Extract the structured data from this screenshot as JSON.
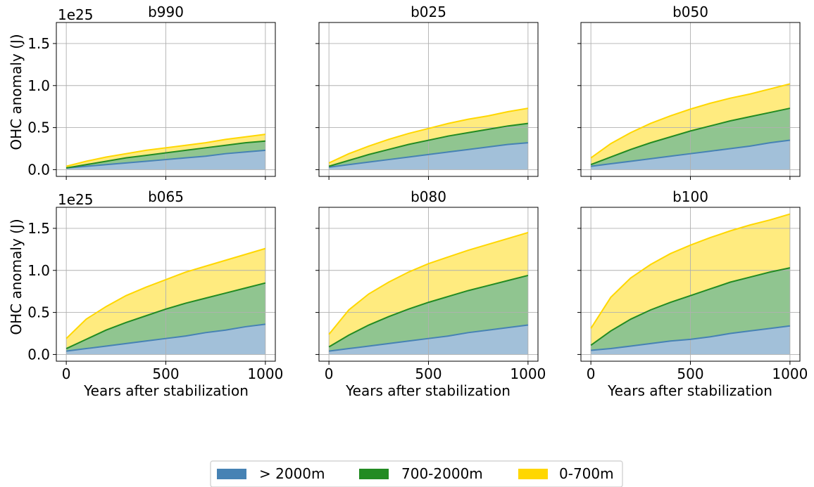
{
  "figure": {
    "ylabel": "OHC anomaly (J)",
    "xlabel": "Years after stabilization",
    "exponent_label": "1e25"
  },
  "legend": {
    "placement": "bottom-center",
    "items": [
      {
        "label": "> 2000m",
        "color": "#4682b4"
      },
      {
        "label": "700-2000m",
        "color": "#228b22"
      },
      {
        "label": "0-700m",
        "color": "#ffd700"
      }
    ]
  },
  "chart_data": [
    {
      "type": "area",
      "title": "b990",
      "x": [
        0,
        100,
        200,
        300,
        400,
        500,
        600,
        700,
        800,
        900,
        1000
      ],
      "series": [
        {
          "name": "> 2000m",
          "values": [
            0.02,
            0.04,
            0.06,
            0.08,
            0.1,
            0.12,
            0.14,
            0.16,
            0.19,
            0.21,
            0.23
          ]
        },
        {
          "name": "700-2000m",
          "values": [
            0.02,
            0.06,
            0.1,
            0.14,
            0.17,
            0.2,
            0.23,
            0.26,
            0.29,
            0.32,
            0.34
          ]
        },
        {
          "name": "0-700m",
          "values": [
            0.04,
            0.1,
            0.15,
            0.19,
            0.23,
            0.26,
            0.29,
            0.32,
            0.36,
            0.39,
            0.42
          ]
        }
      ],
      "xlim": [
        -50,
        1050
      ],
      "ylim": [
        -0.08,
        1.75
      ],
      "xticks": [
        0,
        500,
        1000
      ],
      "yticks": [
        0.0,
        0.5,
        1.0,
        1.5
      ],
      "grid": true
    },
    {
      "type": "area",
      "title": "b025",
      "x": [
        0,
        100,
        200,
        300,
        400,
        500,
        600,
        700,
        800,
        900,
        1000
      ],
      "series": [
        {
          "name": "> 2000m",
          "values": [
            0.03,
            0.06,
            0.09,
            0.12,
            0.15,
            0.18,
            0.21,
            0.24,
            0.27,
            0.3,
            0.32
          ]
        },
        {
          "name": "700-2000m",
          "values": [
            0.04,
            0.11,
            0.18,
            0.24,
            0.3,
            0.35,
            0.4,
            0.44,
            0.48,
            0.52,
            0.55
          ]
        },
        {
          "name": "0-700m",
          "values": [
            0.08,
            0.19,
            0.28,
            0.36,
            0.43,
            0.49,
            0.55,
            0.6,
            0.64,
            0.69,
            0.73
          ]
        }
      ],
      "xlim": [
        -50,
        1050
      ],
      "ylim": [
        -0.08,
        1.75
      ],
      "xticks": [
        0,
        500,
        1000
      ],
      "yticks": [
        0.0,
        0.5,
        1.0,
        1.5
      ],
      "grid": true
    },
    {
      "type": "area",
      "title": "b050",
      "x": [
        0,
        100,
        200,
        300,
        400,
        500,
        600,
        700,
        800,
        900,
        1000
      ],
      "series": [
        {
          "name": "> 2000m",
          "values": [
            0.04,
            0.07,
            0.1,
            0.13,
            0.16,
            0.19,
            0.22,
            0.25,
            0.28,
            0.32,
            0.35
          ]
        },
        {
          "name": "700-2000m",
          "values": [
            0.06,
            0.15,
            0.24,
            0.32,
            0.39,
            0.46,
            0.52,
            0.58,
            0.63,
            0.68,
            0.73
          ]
        },
        {
          "name": "0-700m",
          "values": [
            0.14,
            0.31,
            0.44,
            0.55,
            0.64,
            0.72,
            0.79,
            0.85,
            0.9,
            0.96,
            1.02
          ]
        }
      ],
      "xlim": [
        -50,
        1050
      ],
      "ylim": [
        -0.08,
        1.75
      ],
      "xticks": [
        0,
        500,
        1000
      ],
      "yticks": [
        0.0,
        0.5,
        1.0,
        1.5
      ],
      "grid": true
    },
    {
      "type": "area",
      "title": "b065",
      "x": [
        0,
        100,
        200,
        300,
        400,
        500,
        600,
        700,
        800,
        900,
        1000
      ],
      "series": [
        {
          "name": "> 2000m",
          "values": [
            0.04,
            0.07,
            0.1,
            0.13,
            0.16,
            0.19,
            0.22,
            0.26,
            0.29,
            0.33,
            0.36
          ]
        },
        {
          "name": "700-2000m",
          "values": [
            0.07,
            0.18,
            0.29,
            0.38,
            0.46,
            0.54,
            0.61,
            0.67,
            0.73,
            0.79,
            0.85
          ]
        },
        {
          "name": "0-700m",
          "values": [
            0.19,
            0.42,
            0.57,
            0.7,
            0.8,
            0.89,
            0.98,
            1.05,
            1.12,
            1.19,
            1.26
          ]
        }
      ],
      "xlim": [
        -50,
        1050
      ],
      "ylim": [
        -0.08,
        1.75
      ],
      "xticks": [
        0,
        500,
        1000
      ],
      "yticks": [
        0.0,
        0.5,
        1.0,
        1.5
      ],
      "grid": true
    },
    {
      "type": "area",
      "title": "b080",
      "x": [
        0,
        100,
        200,
        300,
        400,
        500,
        600,
        700,
        800,
        900,
        1000
      ],
      "series": [
        {
          "name": "> 2000m",
          "values": [
            0.04,
            0.07,
            0.1,
            0.13,
            0.16,
            0.19,
            0.22,
            0.26,
            0.29,
            0.32,
            0.35
          ]
        },
        {
          "name": "700-2000m",
          "values": [
            0.09,
            0.23,
            0.35,
            0.45,
            0.54,
            0.62,
            0.69,
            0.76,
            0.82,
            0.88,
            0.94
          ]
        },
        {
          "name": "0-700m",
          "values": [
            0.24,
            0.53,
            0.72,
            0.86,
            0.98,
            1.08,
            1.16,
            1.24,
            1.31,
            1.38,
            1.45
          ]
        }
      ],
      "xlim": [
        -50,
        1050
      ],
      "ylim": [
        -0.08,
        1.75
      ],
      "xticks": [
        0,
        500,
        1000
      ],
      "yticks": [
        0.0,
        0.5,
        1.0,
        1.5
      ],
      "grid": true
    },
    {
      "type": "area",
      "title": "b100",
      "x": [
        0,
        100,
        200,
        300,
        400,
        500,
        600,
        700,
        800,
        900,
        1000
      ],
      "series": [
        {
          "name": "> 2000m",
          "values": [
            0.05,
            0.07,
            0.1,
            0.13,
            0.16,
            0.18,
            0.21,
            0.25,
            0.28,
            0.31,
            0.34
          ]
        },
        {
          "name": "700-2000m",
          "values": [
            0.11,
            0.28,
            0.42,
            0.53,
            0.62,
            0.7,
            0.78,
            0.86,
            0.92,
            0.98,
            1.03
          ]
        },
        {
          "name": "0-700m",
          "values": [
            0.31,
            0.68,
            0.91,
            1.07,
            1.2,
            1.3,
            1.39,
            1.47,
            1.54,
            1.6,
            1.67
          ]
        }
      ],
      "xlim": [
        -50,
        1050
      ],
      "ylim": [
        -0.08,
        1.75
      ],
      "xticks": [
        0,
        500,
        1000
      ],
      "yticks": [
        0.0,
        0.5,
        1.0,
        1.5
      ],
      "grid": true
    }
  ]
}
